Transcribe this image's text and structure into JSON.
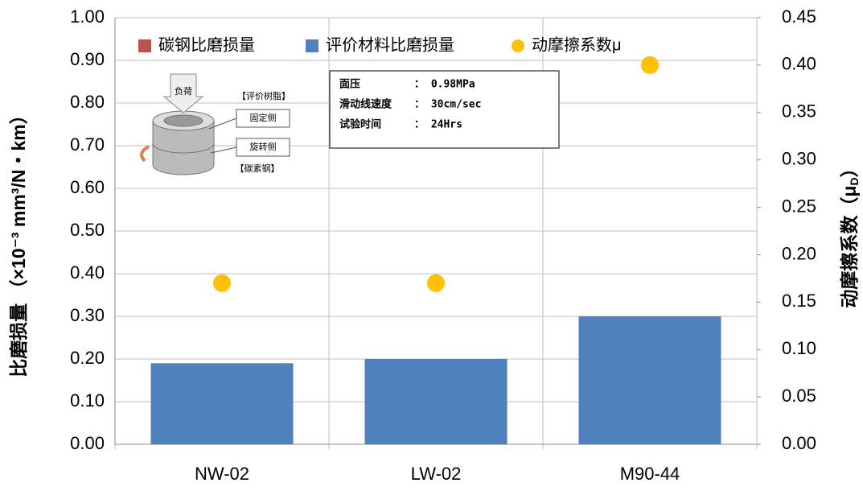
{
  "chart_data": {
    "type": "bar",
    "categories": [
      "NW-02",
      "LW-02",
      "M90-44"
    ],
    "series": [
      {
        "name": "碳钢比磨损量",
        "color": "#c0504d",
        "values": [
          null,
          null,
          null
        ]
      },
      {
        "name": "评价材料比磨损量",
        "color": "#4f81bd",
        "values": [
          0.19,
          0.2,
          0.3
        ]
      },
      {
        "name": "动摩擦系数μ",
        "color": "#ffc000",
        "values": [
          0.17,
          0.17,
          0.4
        ],
        "axis": "y2",
        "type": "scatter"
      }
    ],
    "ylim": [
      0,
      1
    ],
    "yticks": [
      {
        "value": 0,
        "label": "0.00"
      },
      {
        "value": 0.1,
        "label": "0.10"
      },
      {
        "value": 0.2,
        "label": "0.20"
      },
      {
        "value": 0.3,
        "label": "0.30"
      },
      {
        "value": 0.4,
        "label": "0.40"
      },
      {
        "value": 0.5,
        "label": "0.50"
      },
      {
        "value": 0.6,
        "label": "0.60"
      },
      {
        "value": 0.7,
        "label": "0.70"
      },
      {
        "value": 0.8,
        "label": "0.80"
      },
      {
        "value": 0.9,
        "label": "0.90"
      },
      {
        "value": 1,
        "label": "1.00"
      }
    ],
    "y2lim": [
      0,
      0.45
    ],
    "y2ticks": [
      {
        "value": 0,
        "label": "0.00"
      },
      {
        "value": 0.05,
        "label": "0.05"
      },
      {
        "value": 0.1,
        "label": "0.10"
      },
      {
        "value": 0.15,
        "label": "0.15"
      },
      {
        "value": 0.2,
        "label": "0.20"
      },
      {
        "value": 0.25,
        "label": "0.25"
      },
      {
        "value": 0.3,
        "label": "0.30"
      },
      {
        "value": 0.35,
        "label": "0.35"
      },
      {
        "value": 0.4,
        "label": "0.40"
      },
      {
        "value": 0.45,
        "label": "0.45"
      }
    ],
    "y_label": "比磨损量 （×10⁻³ mm³/N・km）",
    "y2_label": {
      "text": "动摩擦系数（μ",
      "sub": "D",
      "end": "）"
    },
    "grid": true,
    "legend": "top",
    "annotations": {
      "load": "负荷",
      "resin": "【评价树脂】",
      "fixed": "固定侧",
      "rotating": "旋转侧",
      "steel": "【碳素钢】",
      "conditions": [
        {
          "label": "面压",
          "value": "： 0.98MPa"
        },
        {
          "label": "滑动线速度",
          "value": "： 30cm/sec"
        },
        {
          "label": "试验时间",
          "value": "： 24Hrs"
        }
      ]
    }
  }
}
